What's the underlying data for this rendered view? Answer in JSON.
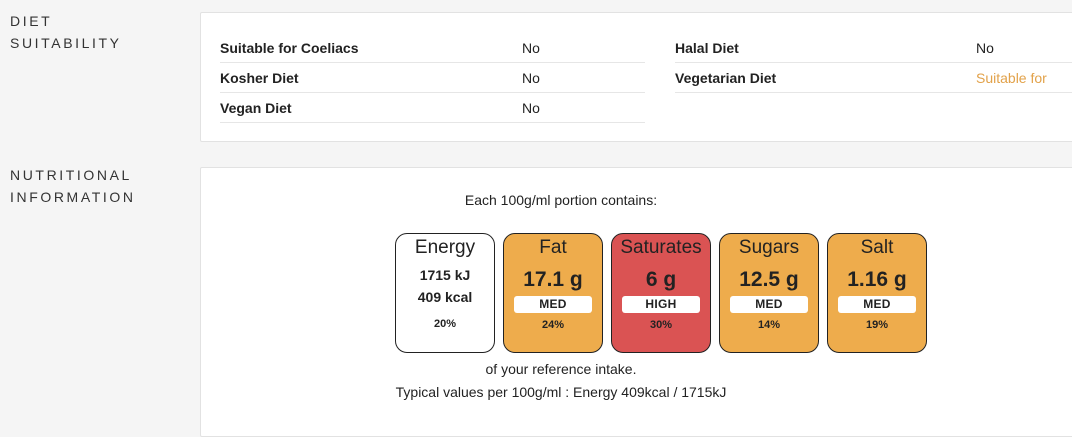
{
  "diet": {
    "section_title_line1": "DIET",
    "section_title_line2": "SUITABILITY",
    "rows": [
      {
        "name": "Suitable for Coeliacs",
        "value": "No"
      },
      {
        "name": "Kosher Diet",
        "value": "No"
      },
      {
        "name": "Vegan Diet",
        "value": "No"
      },
      {
        "name": "Halal Diet",
        "value": "No"
      },
      {
        "name": "Vegetarian Diet",
        "value": "Suitable for"
      }
    ],
    "colors": {
      "suitable": "#e2a24a"
    }
  },
  "nutrition": {
    "section_title_line1": "NUTRITIONAL",
    "section_title_line2": "INFORMATION",
    "portion_text": "Each 100g/ml portion contains:",
    "energy": {
      "name": "Energy",
      "kj": "1715 kJ",
      "kcal": "409 kcal",
      "pct": "20%"
    },
    "tiles": [
      {
        "name": "Fat",
        "value": "17.1 g",
        "level": "MED",
        "pct": "24%",
        "color": "#eeac4c"
      },
      {
        "name": "Saturates",
        "value": "6 g",
        "level": "HIGH",
        "pct": "30%",
        "color": "#da5353"
      },
      {
        "name": "Sugars",
        "value": "12.5 g",
        "level": "MED",
        "pct": "14%",
        "color": "#eeac4c"
      },
      {
        "name": "Salt",
        "value": "1.16 g",
        "level": "MED",
        "pct": "19%",
        "color": "#eeac4c"
      }
    ],
    "reference_text": "of your reference intake.",
    "typical_text": "Typical values per 100g/ml : Energy 409kcal / 1715kJ"
  }
}
